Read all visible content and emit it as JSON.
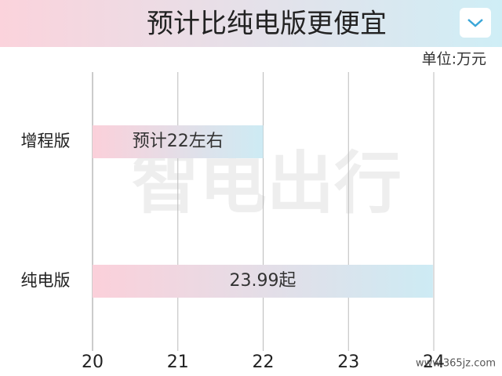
{
  "chart_data": {
    "type": "hbar",
    "title": "预计比纯电版更便宜",
    "unit_label": "单位:万元",
    "categories": [
      "增程版",
      "纯电版"
    ],
    "values": [
      22,
      23.99
    ],
    "value_labels": [
      "预计22左右",
      "23.99起"
    ],
    "bar_gradient": [
      "#fbd0da",
      "#cdebf4"
    ],
    "xlim": [
      20,
      24
    ],
    "xticks": [
      20,
      21,
      22,
      23,
      24
    ],
    "grid": true,
    "watermark": "智电出行",
    "source": "www.365jz.com"
  }
}
